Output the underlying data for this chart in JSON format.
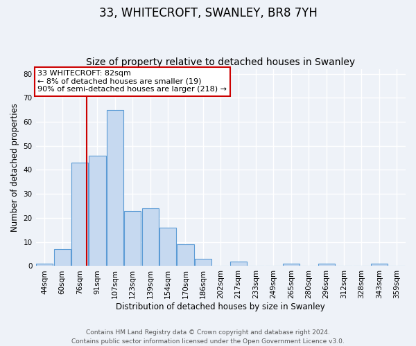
{
  "title": "33, WHITECROFT, SWANLEY, BR8 7YH",
  "subtitle": "Size of property relative to detached houses in Swanley",
  "xlabel": "Distribution of detached houses by size in Swanley",
  "ylabel": "Number of detached properties",
  "bin_labels": [
    "44sqm",
    "60sqm",
    "76sqm",
    "91sqm",
    "107sqm",
    "123sqm",
    "139sqm",
    "154sqm",
    "170sqm",
    "186sqm",
    "202sqm",
    "217sqm",
    "233sqm",
    "249sqm",
    "265sqm",
    "280sqm",
    "296sqm",
    "312sqm",
    "328sqm",
    "343sqm",
    "359sqm"
  ],
  "bar_heights": [
    1,
    7,
    43,
    46,
    65,
    23,
    24,
    16,
    9,
    3,
    0,
    2,
    0,
    0,
    1,
    0,
    1,
    0,
    0,
    1,
    0
  ],
  "bar_color": "#c6d9f0",
  "bar_edge_color": "#5b9bd5",
  "ylim": [
    0,
    82
  ],
  "yticks": [
    0,
    10,
    20,
    30,
    40,
    50,
    60,
    70,
    80
  ],
  "annotation_line1": "33 WHITECROFT: 82sqm",
  "annotation_line2": "← 8% of detached houses are smaller (19)",
  "annotation_line3": "90% of semi-detached houses are larger (218) →",
  "red_line_color": "#cc0000",
  "footer_line1": "Contains HM Land Registry data © Crown copyright and database right 2024.",
  "footer_line2": "Contains public sector information licensed under the Open Government Licence v3.0.",
  "background_color": "#eef2f8",
  "grid_color": "#ffffff",
  "title_fontsize": 12,
  "subtitle_fontsize": 10,
  "axis_label_fontsize": 8.5,
  "tick_fontsize": 7.5,
  "footer_fontsize": 6.5,
  "annot_fontsize": 8
}
